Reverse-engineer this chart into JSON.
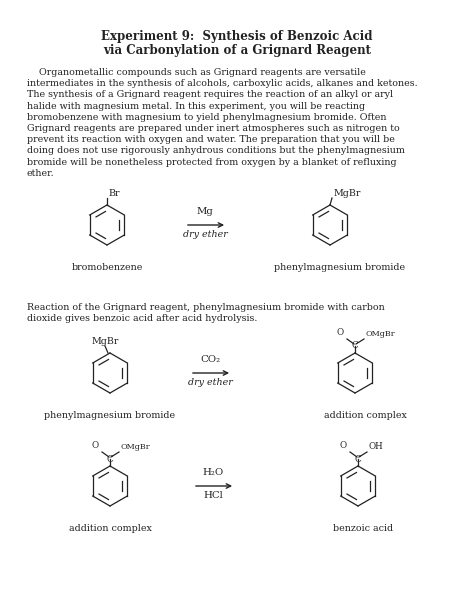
{
  "title_line1": "Experiment 9:  Synthesis of Benzoic Acid",
  "title_line2": "via Carbonylation of a Grignard Reagent",
  "paragraph1": "    Organometallic compounds such as Grignard reagents are versatile intermediates in the synthesis of alcohols, carboxylic acids, alkanes and ketones. The synthesis of a Grignard reagent requires the reaction of an alkyl or aryl halide with magnesium metal. In this experiment, you will be reacting bromobenzene with magnesium to yield phenylmagnesium bromide. Often Grignard reagents are prepared under inert atmospheres such as nitrogen to prevent its reaction with oxygen and water. The preparation that you will be doing does not use rigorously anhydrous conditions but the phenylmagnesium bromide will be nonetheless protected from oxygen by a blanket of refluxing ether.",
  "reaction1_text_line1": "Reaction of the Grignard reagent, phenylmagnesium bromide with carbon",
  "reaction1_text_line2": "dioxide gives benzoic acid after acid hydrolysis.",
  "label_bromobenzene": "bromobenzene",
  "label_phenylmg": "phenylmagnesium bromide",
  "label_addition": "addition complex",
  "label_benzoic": "benzoic acid",
  "arrow1_top": "Mg",
  "arrow1_bottom": "dry ether",
  "arrow2_top": "CO₂",
  "arrow2_bottom": "dry ether",
  "arrow3_top": "H₂O",
  "arrow3_bottom": "HCl",
  "bg_color": "#ffffff",
  "text_color": "#222222",
  "font_size": 6.8,
  "title_font_size": 8.5
}
